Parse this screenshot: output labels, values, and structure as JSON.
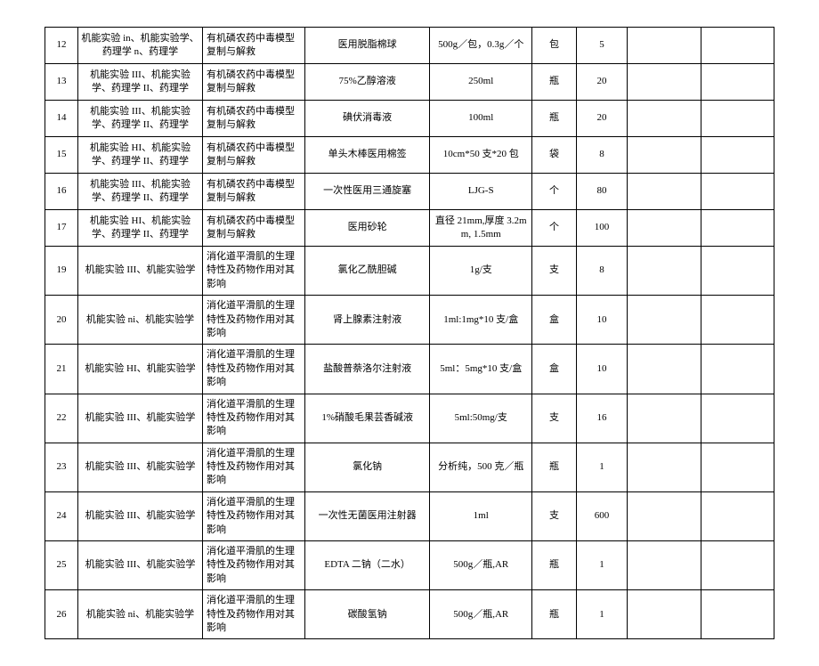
{
  "rows": [
    {
      "idx": "12",
      "course": "机能实验 in、机能实验学、药理学 n、药理学",
      "exp": "有机磷农药中毒模型复制与解救",
      "item": "医用脱脂棉球",
      "spec": "500g／包，0.3g／个",
      "unit": "包",
      "qty": "5"
    },
    {
      "idx": "13",
      "course": "机能实验 III、机能实验学、药理学 II、药理学",
      "exp": "有机磷农药中毒模型复制与解救",
      "item": "75%乙醇溶液",
      "spec": "250ml",
      "unit": "瓶",
      "qty": "20"
    },
    {
      "idx": "14",
      "course": "机能实验 III、机能实验学、药理学 II、药理学",
      "exp": "有机磷农药中毒模型复制与解救",
      "item": "碘伏消毒液",
      "spec": "100ml",
      "unit": "瓶",
      "qty": "20"
    },
    {
      "idx": "15",
      "course": "机能实验 HI、机能实验学、药理学 II、药理学",
      "exp": "有机磷农药中毒模型复制与解救",
      "item": "单头木棒医用棉签",
      "spec": "10cm*50 支*20 包",
      "unit": "袋",
      "qty": "8"
    },
    {
      "idx": "16",
      "course": "机能实验 III、机能实验学、药理学 II、药理学",
      "exp": "有机磷农药中毒模型复制与解救",
      "item": "一次性医用三通旋塞",
      "spec": "LJG-S",
      "unit": "个",
      "qty": "80"
    },
    {
      "idx": "17",
      "course": "机能实验 HI、机能实验学、药理学 II、药理学",
      "exp": "有机磷农药中毒模型复制与解救",
      "item": "医用砂轮",
      "spec": "直径 21mm,厚度 3.2mm, 1.5mm",
      "unit": "个",
      "qty": "100"
    },
    {
      "idx": "19",
      "course": "机能实验 III、机能实验学",
      "exp": "消化道平滑肌的生理特性及药物作用对其影响",
      "item": "氯化乙酰胆碱",
      "spec": "1g/支",
      "unit": "支",
      "qty": "8"
    },
    {
      "idx": "20",
      "course": "机能实验 ni、机能实验学",
      "exp": "消化道平滑肌的生理特性及药物作用对其影响",
      "item": "肾上腺素注射液",
      "spec": "1ml:1mg*10 支/盒",
      "unit": "盒",
      "qty": "10"
    },
    {
      "idx": "21",
      "course": "机能实验 HI、机能实验学",
      "exp": "消化道平滑肌的生理特性及药物作用对其影响",
      "item": "盐酸普萘洛尔注射液",
      "spec": "5ml：5mg*10 支/盒",
      "unit": "盒",
      "qty": "10"
    },
    {
      "idx": "22",
      "course": "机能实验 III、机能实验学",
      "exp": "消化道平滑肌的生理特性及药物作用对其影响",
      "item": "1%硝酸毛果芸香碱液",
      "spec": "5ml:50mg/支",
      "unit": "支",
      "qty": "16"
    },
    {
      "idx": "23",
      "course": "机能实验 III、机能实验学",
      "exp": "消化道平滑肌的生理特性及药物作用对其影响",
      "item": "氯化钠",
      "spec": "分析纯，500 克／瓶",
      "unit": "瓶",
      "qty": "1"
    },
    {
      "idx": "24",
      "course": "机能实验 III、机能实验学",
      "exp": "消化道平滑肌的生理特性及药物作用对其影响",
      "item": "一次性无菌医用注射器",
      "spec": "1ml",
      "unit": "支",
      "qty": "600"
    },
    {
      "idx": "25",
      "course": "机能实验 III、机能实验学",
      "exp": "消化道平滑肌的生理特性及药物作用对其影响",
      "item": "EDTA 二钠（二水）",
      "spec": "500g／瓶,AR",
      "unit": "瓶",
      "qty": "1"
    },
    {
      "idx": "26",
      "course": "机能实验 ni、机能实验学",
      "exp": "消化道平滑肌的生理特性及药物作用对其影响",
      "item": "碳酸氢钠",
      "spec": "500g／瓶,AR",
      "unit": "瓶",
      "qty": "1"
    }
  ]
}
